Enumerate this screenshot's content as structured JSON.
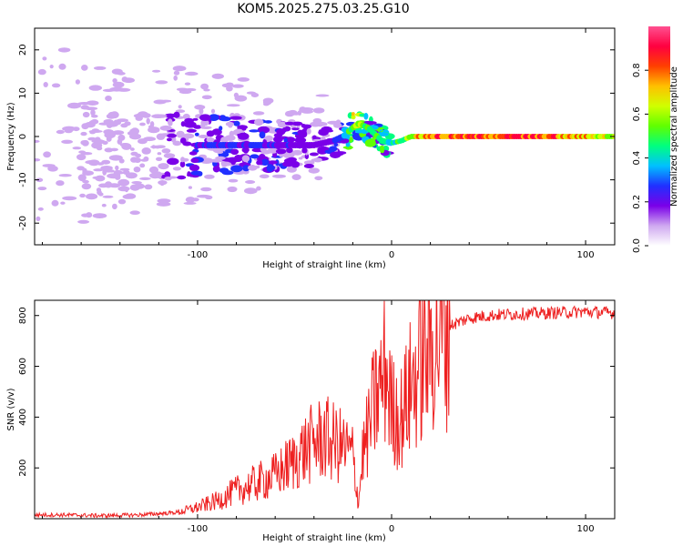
{
  "chart_data": [
    {
      "type": "heatmap",
      "title": "KOM5.2025.275.03.25.G10",
      "xlabel": "Height of straight line (km)",
      "ylabel": "Frequency (Hz)",
      "xlim": [
        -184,
        115
      ],
      "ylim": [
        -25,
        25
      ],
      "x_ticks": [
        -100,
        0,
        100
      ],
      "x_tick_labels": [
        "-100",
        "0",
        "100"
      ],
      "y_ticks": [
        20,
        10,
        0,
        -10,
        -20
      ],
      "y_tick_labels": [
        "20",
        "10",
        "0",
        "-10",
        "-20"
      ],
      "colorbar": {
        "label": "Normalized spectral amplitude",
        "range": [
          0,
          1
        ],
        "ticks": [
          0.0,
          0.2,
          0.4,
          0.6,
          0.8
        ],
        "tick_labels": [
          "0.0",
          "0.2",
          "0.4",
          "0.6",
          "0.8"
        ],
        "colors": [
          "#ffffff",
          "#cfa8f0",
          "#7a00e8",
          "#2030ff",
          "#00c0ff",
          "#00ff80",
          "#60ff00",
          "#d0ff00",
          "#ffc000",
          "#ff4000",
          "#ff0040",
          "#ff5090"
        ]
      },
      "ridge": {
        "description": "dominant spectral line",
        "x": [
          -184,
          -150,
          -120,
          -100,
          -80,
          -60,
          -40,
          -30,
          -25,
          -20,
          -17,
          -12,
          -5,
          0,
          5,
          10,
          20,
          40,
          60,
          80,
          100,
          115
        ],
        "y": [
          -4,
          -4,
          -3,
          -2,
          -2,
          -2,
          -2,
          -1,
          0,
          2,
          3,
          2,
          -1,
          -1.5,
          -1,
          0,
          0,
          0,
          0,
          0,
          0,
          0
        ],
        "amplitude": [
          0.08,
          0.1,
          0.12,
          0.22,
          0.25,
          0.22,
          0.18,
          0.2,
          0.3,
          0.6,
          0.6,
          0.5,
          0.5,
          0.4,
          0.5,
          0.6,
          0.8,
          0.8,
          0.85,
          0.8,
          0.7,
          0.6
        ]
      }
    },
    {
      "type": "line",
      "xlabel": "Height of straight line (km)",
      "ylabel": "SNR (v/v)",
      "xlim": [
        -184,
        115
      ],
      "ylim": [
        0,
        860
      ],
      "x_ticks": [
        -100,
        0,
        100
      ],
      "x_tick_labels": [
        "-100",
        "0",
        "100"
      ],
      "y_ticks": [
        200,
        400,
        600,
        800
      ],
      "y_tick_labels": [
        "200",
        "400",
        "600",
        "800"
      ],
      "series": [
        {
          "name": "SNR",
          "color": "#ee2020",
          "x": [
            -184,
            -170,
            -150,
            -130,
            -110,
            -100,
            -90,
            -80,
            -70,
            -60,
            -50,
            -45,
            -40,
            -35,
            -30,
            -25,
            -20,
            -17,
            -15,
            -12,
            -10,
            -8,
            -5,
            -3,
            0,
            5,
            10,
            15,
            20,
            25,
            30,
            40,
            50,
            60,
            80,
            100,
            115
          ],
          "y": [
            15,
            15,
            12,
            15,
            25,
            45,
            70,
            110,
            140,
            170,
            230,
            270,
            300,
            320,
            300,
            280,
            250,
            60,
            250,
            340,
            420,
            470,
            530,
            600,
            430,
            400,
            520,
            610,
            680,
            730,
            760,
            790,
            800,
            805,
            810,
            815,
            810
          ]
        }
      ]
    }
  ]
}
